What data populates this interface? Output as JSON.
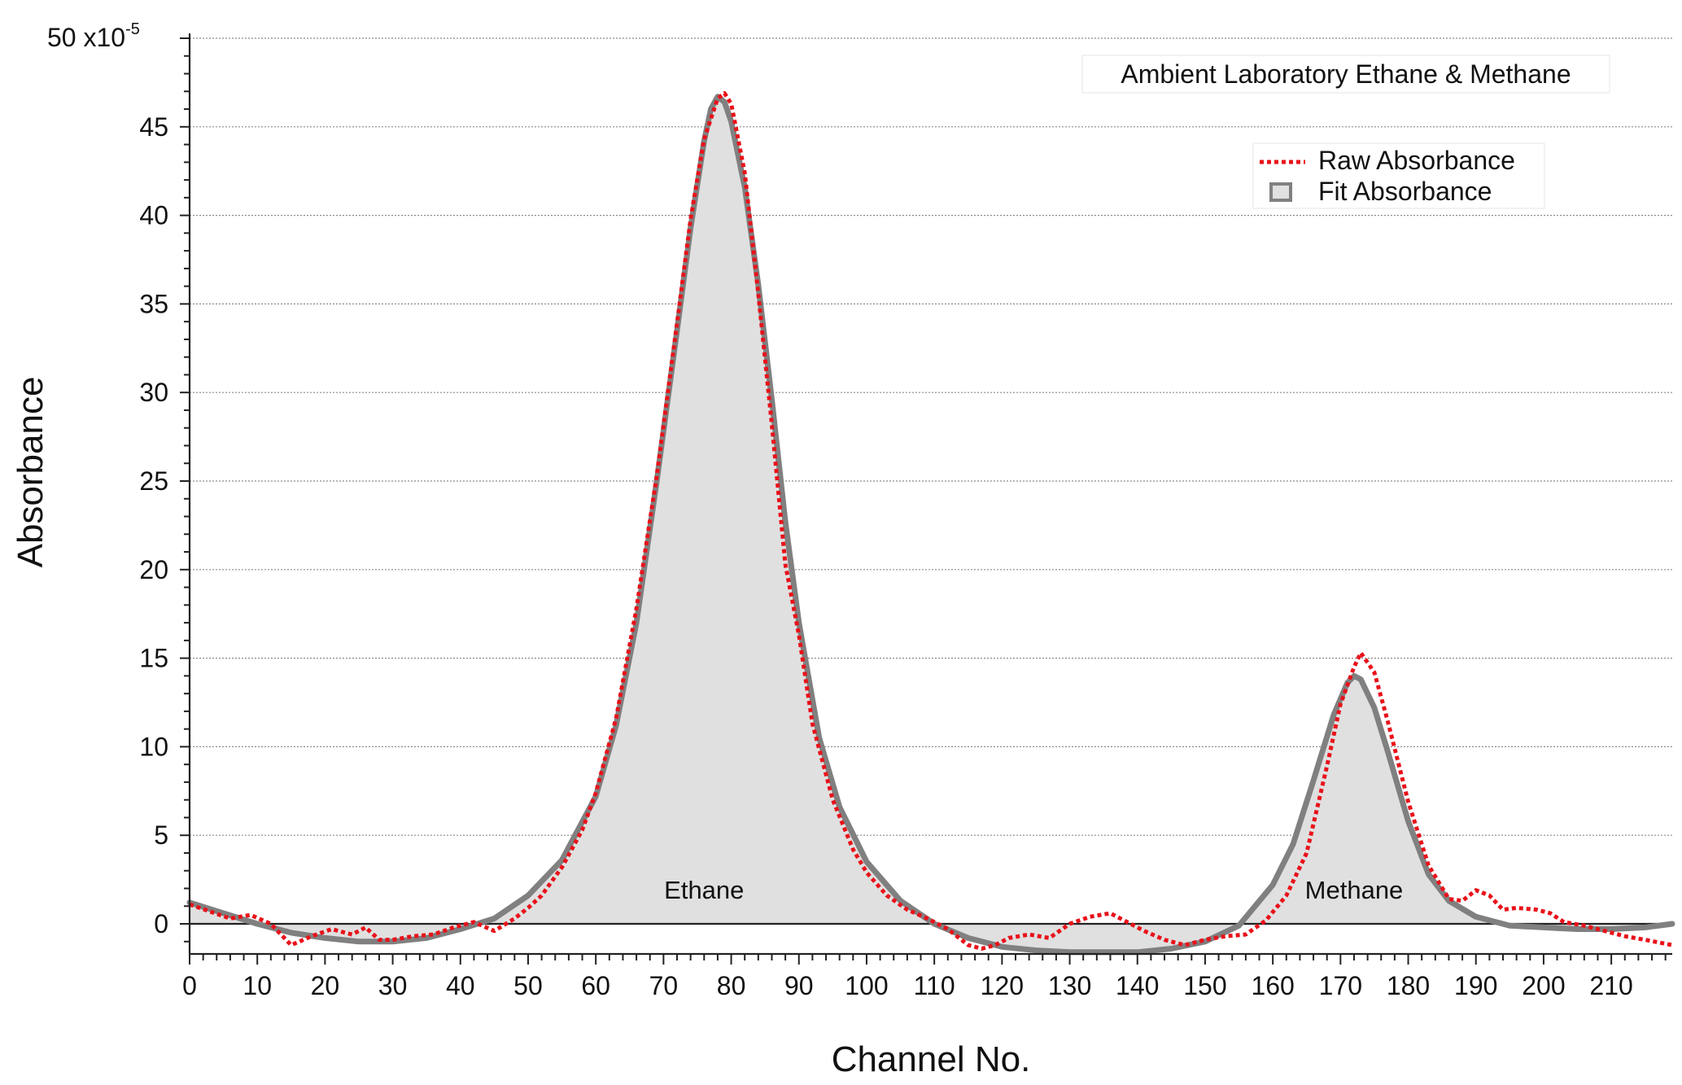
{
  "chart_data": {
    "type": "line",
    "title": "Ambient Laboratory Ethane & Methane",
    "xlabel": "Channel No.",
    "ylabel": "Absorbance",
    "y_top_label_base": "50 x10",
    "y_top_label_exp": "-5",
    "xlim": [
      0,
      219
    ],
    "ylim": [
      -1.7,
      50
    ],
    "x_ticks": [
      0,
      10,
      20,
      30,
      40,
      50,
      60,
      70,
      80,
      90,
      100,
      110,
      120,
      130,
      140,
      150,
      160,
      170,
      180,
      190,
      200,
      210
    ],
    "y_ticks": [
      0,
      5,
      10,
      15,
      20,
      25,
      30,
      35,
      40,
      45
    ],
    "grid": "horizontal dotted",
    "legend_position": "top-right",
    "series": [
      {
        "name": "Raw Absorbance",
        "style": "dotted",
        "color": "#e8121a",
        "x": [
          0,
          3,
          6,
          9,
          12,
          15,
          18,
          21,
          24,
          26,
          28,
          30,
          33,
          36,
          39,
          42,
          45,
          48,
          50,
          52,
          55,
          58,
          60,
          63,
          66,
          69,
          72,
          74,
          76,
          78,
          79,
          80,
          82,
          84,
          86,
          88,
          90,
          92,
          95,
          98,
          100,
          103,
          106,
          109,
          112,
          115,
          117,
          119,
          121,
          124,
          127,
          130,
          133,
          136,
          138,
          141,
          144,
          147,
          150,
          153,
          156,
          159,
          162,
          165,
          168,
          170,
          172,
          173,
          175,
          177,
          180,
          183,
          186,
          188,
          190,
          192,
          194,
          196,
          199,
          201,
          203,
          206,
          209,
          212,
          215,
          219
        ],
        "y": [
          1.1,
          0.7,
          0.3,
          0.5,
          0.0,
          -1.2,
          -0.7,
          -0.3,
          -0.6,
          -0.2,
          -0.9,
          -0.9,
          -0.7,
          -0.6,
          -0.2,
          0.1,
          -0.4,
          0.3,
          0.9,
          1.6,
          3.2,
          5.3,
          7.4,
          11.6,
          17.8,
          25.3,
          33.9,
          39.8,
          44.3,
          46.6,
          46.9,
          46.3,
          42.4,
          35.6,
          28.2,
          20.3,
          16.3,
          11.3,
          7.0,
          4.2,
          2.9,
          1.6,
          0.8,
          0.3,
          -0.3,
          -1.2,
          -1.4,
          -1.2,
          -0.8,
          -0.6,
          -0.8,
          0.0,
          0.4,
          0.6,
          0.2,
          -0.4,
          -0.9,
          -1.2,
          -0.9,
          -0.7,
          -0.6,
          0.2,
          1.6,
          4.0,
          8.9,
          12.4,
          14.5,
          15.3,
          14.2,
          11.4,
          6.9,
          3.3,
          1.4,
          1.3,
          1.9,
          1.6,
          0.8,
          0.9,
          0.8,
          0.6,
          0.1,
          -0.1,
          -0.4,
          -0.7,
          -0.9,
          -1.2
        ]
      },
      {
        "name": "Fit Absorbance",
        "style": "filled",
        "color": "#808080",
        "fill": "#e0e0e0",
        "x": [
          0,
          5,
          10,
          15,
          20,
          25,
          30,
          35,
          40,
          45,
          50,
          55,
          60,
          63,
          66,
          69,
          72,
          74,
          76,
          77,
          78,
          79,
          80,
          82,
          84,
          86,
          88,
          90,
          93,
          96,
          100,
          105,
          110,
          115,
          120,
          125,
          130,
          135,
          140,
          145,
          150,
          155,
          160,
          163,
          166,
          169,
          171,
          172,
          173,
          175,
          177,
          180,
          183,
          186,
          190,
          195,
          200,
          205,
          210,
          215,
          219
        ],
        "y": [
          1.2,
          0.6,
          0.0,
          -0.5,
          -0.8,
          -1.0,
          -1.0,
          -0.8,
          -0.3,
          0.3,
          1.6,
          3.6,
          7.2,
          11.2,
          17.0,
          25.0,
          33.5,
          39.3,
          44.2,
          46.0,
          46.7,
          46.4,
          45.3,
          41.6,
          36.1,
          29.6,
          22.7,
          17.0,
          10.5,
          6.6,
          3.5,
          1.3,
          0.0,
          -0.8,
          -1.3,
          -1.5,
          -1.6,
          -1.6,
          -1.6,
          -1.4,
          -1.0,
          -0.1,
          2.2,
          4.5,
          8.1,
          11.8,
          13.6,
          14.0,
          13.8,
          12.2,
          9.7,
          5.8,
          2.8,
          1.3,
          0.4,
          -0.1,
          -0.2,
          -0.3,
          -0.3,
          -0.2,
          0.0
        ]
      }
    ],
    "annotations": [
      {
        "text": "Ethane",
        "x": 76,
        "y": 1.7
      },
      {
        "text": "Methane",
        "x": 172,
        "y": 1.7
      }
    ]
  }
}
